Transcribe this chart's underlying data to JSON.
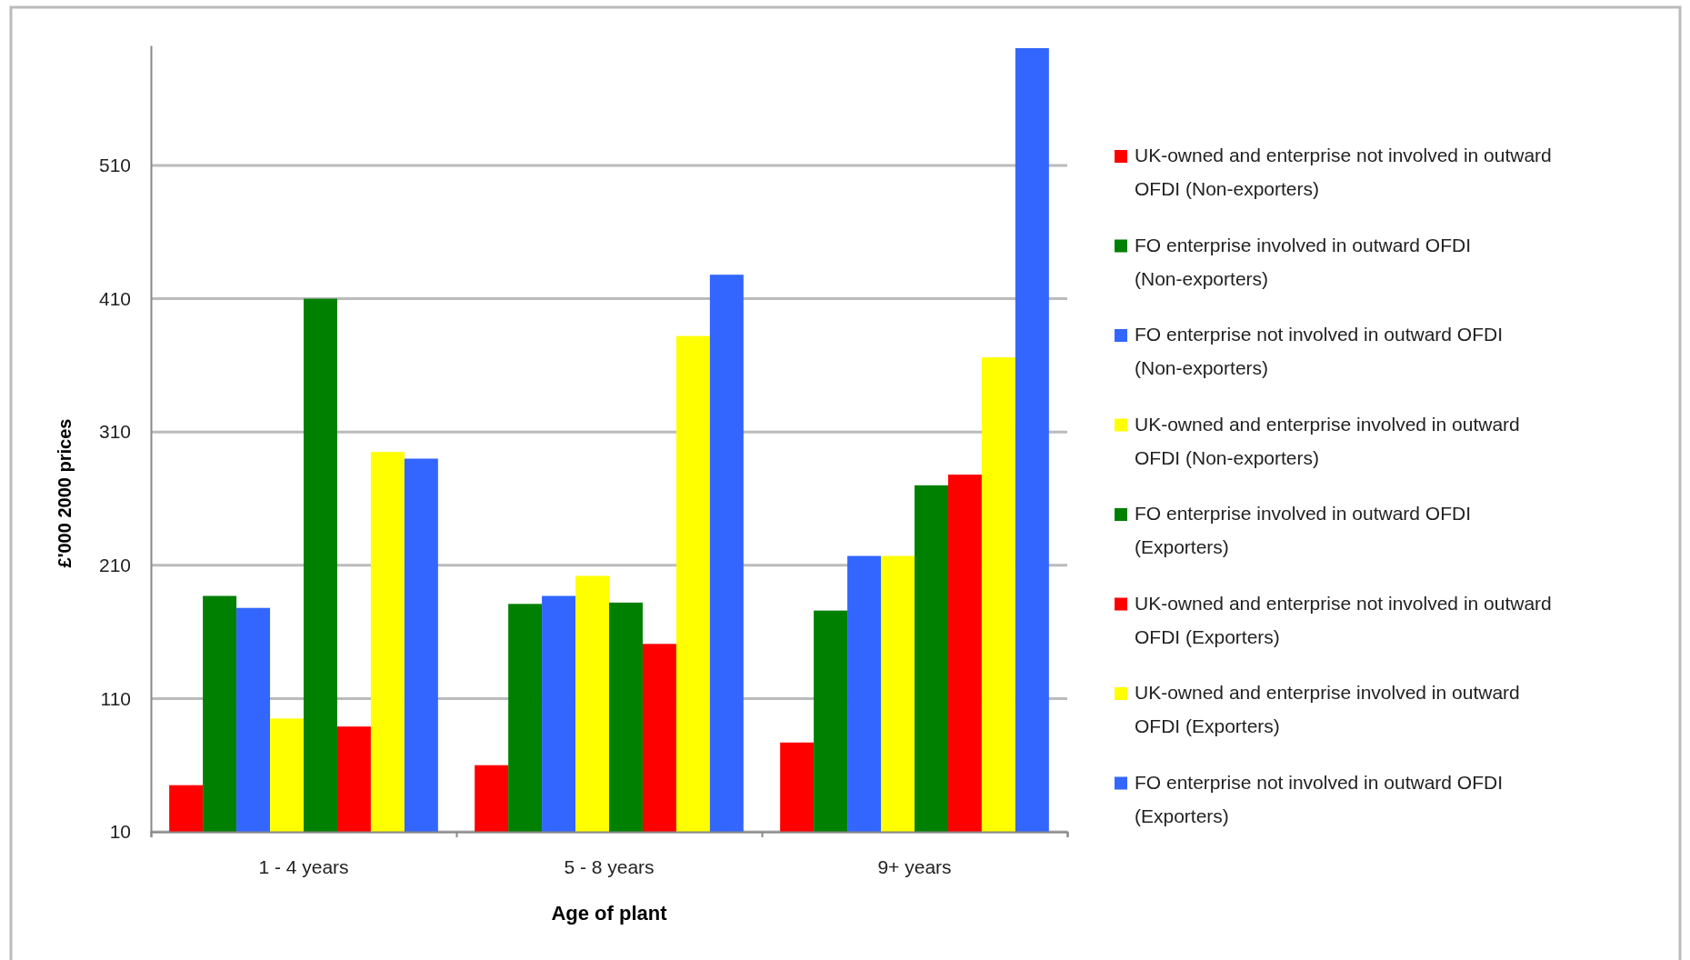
{
  "chart_data": {
    "type": "bar",
    "xlabel": "Age of plant",
    "ylabel": "£'000 2000 prices",
    "categories": [
      "1 - 4 years",
      "5 - 8 years",
      "9+ years"
    ],
    "ylim": [
      10,
      600
    ],
    "yticks": [
      10,
      110,
      210,
      310,
      410,
      510
    ],
    "grid": "y",
    "legend": "right",
    "series": [
      {
        "name": "UK-owned and enterprise not involved in outward OFDI (Non-exporters)",
        "color": "#ff0000",
        "values": [
          45,
          60,
          77
        ]
      },
      {
        "name": "FO enterprise involved in outward OFDI (Non-exporters)",
        "color": "#008000",
        "values": [
          187,
          181,
          176
        ]
      },
      {
        "name": "FO enterprise not involved in outward OFDI (Non-exporters)",
        "color": "#3366ff",
        "values": [
          178,
          187,
          217
        ]
      },
      {
        "name": "UK-owned and enterprise involved in outward OFDI (Non-exporters)",
        "color": "#ffff00",
        "values": [
          95,
          202,
          217
        ]
      },
      {
        "name": "FO enterprise involved in outward OFDI (Exporters)",
        "color": "#008000",
        "values": [
          410,
          182,
          270
        ]
      },
      {
        "name": "UK-owned and enterprise not involved in outward OFDI (Exporters)",
        "color": "#ff0000",
        "values": [
          89,
          151,
          278
        ]
      },
      {
        "name": "UK-owned and enterprise involved in outward OFDI (Exporters)",
        "color": "#ffff00",
        "values": [
          295,
          382,
          366
        ]
      },
      {
        "name": "FO enterprise not involved in outward OFDI (Exporters)",
        "color": "#3366ff",
        "values": [
          290,
          428,
          598
        ]
      }
    ]
  }
}
